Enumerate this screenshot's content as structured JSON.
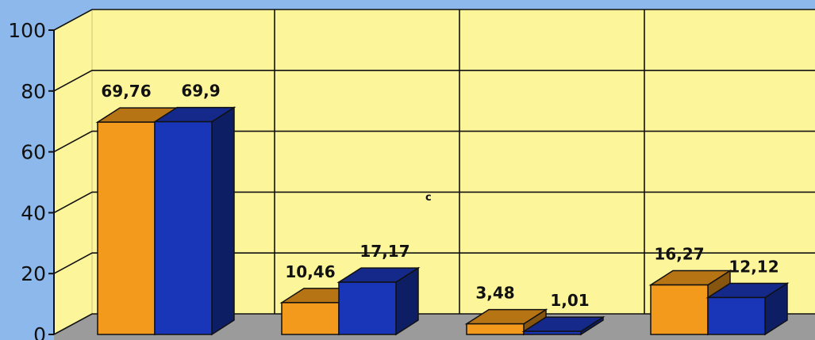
{
  "chart_data": {
    "type": "bar",
    "title": "",
    "xlabel": "",
    "ylabel": "",
    "ylim": [
      0,
      100
    ],
    "yticks": [
      0,
      20,
      40,
      60,
      80,
      100
    ],
    "grid": true,
    "categories": [
      "",
      "",
      "",
      ""
    ],
    "series": [
      {
        "values": [
          69.76,
          10.46,
          3.48,
          16.27
        ],
        "labels": [
          "69,76",
          "10,46",
          "3,48",
          "16,27"
        ],
        "color": "#f39a1c"
      },
      {
        "values": [
          69.9,
          17.17,
          1.01,
          12.12
        ],
        "labels": [
          "69,9",
          "17,17",
          "1,01",
          "12,12"
        ],
        "color": "#1a36b8"
      }
    ],
    "annotations": [
      "c"
    ]
  },
  "colors": {
    "wall": "#fdf59a",
    "floor": "#9b9b9b",
    "background": "#8db8ec",
    "gridline": "#111111"
  }
}
